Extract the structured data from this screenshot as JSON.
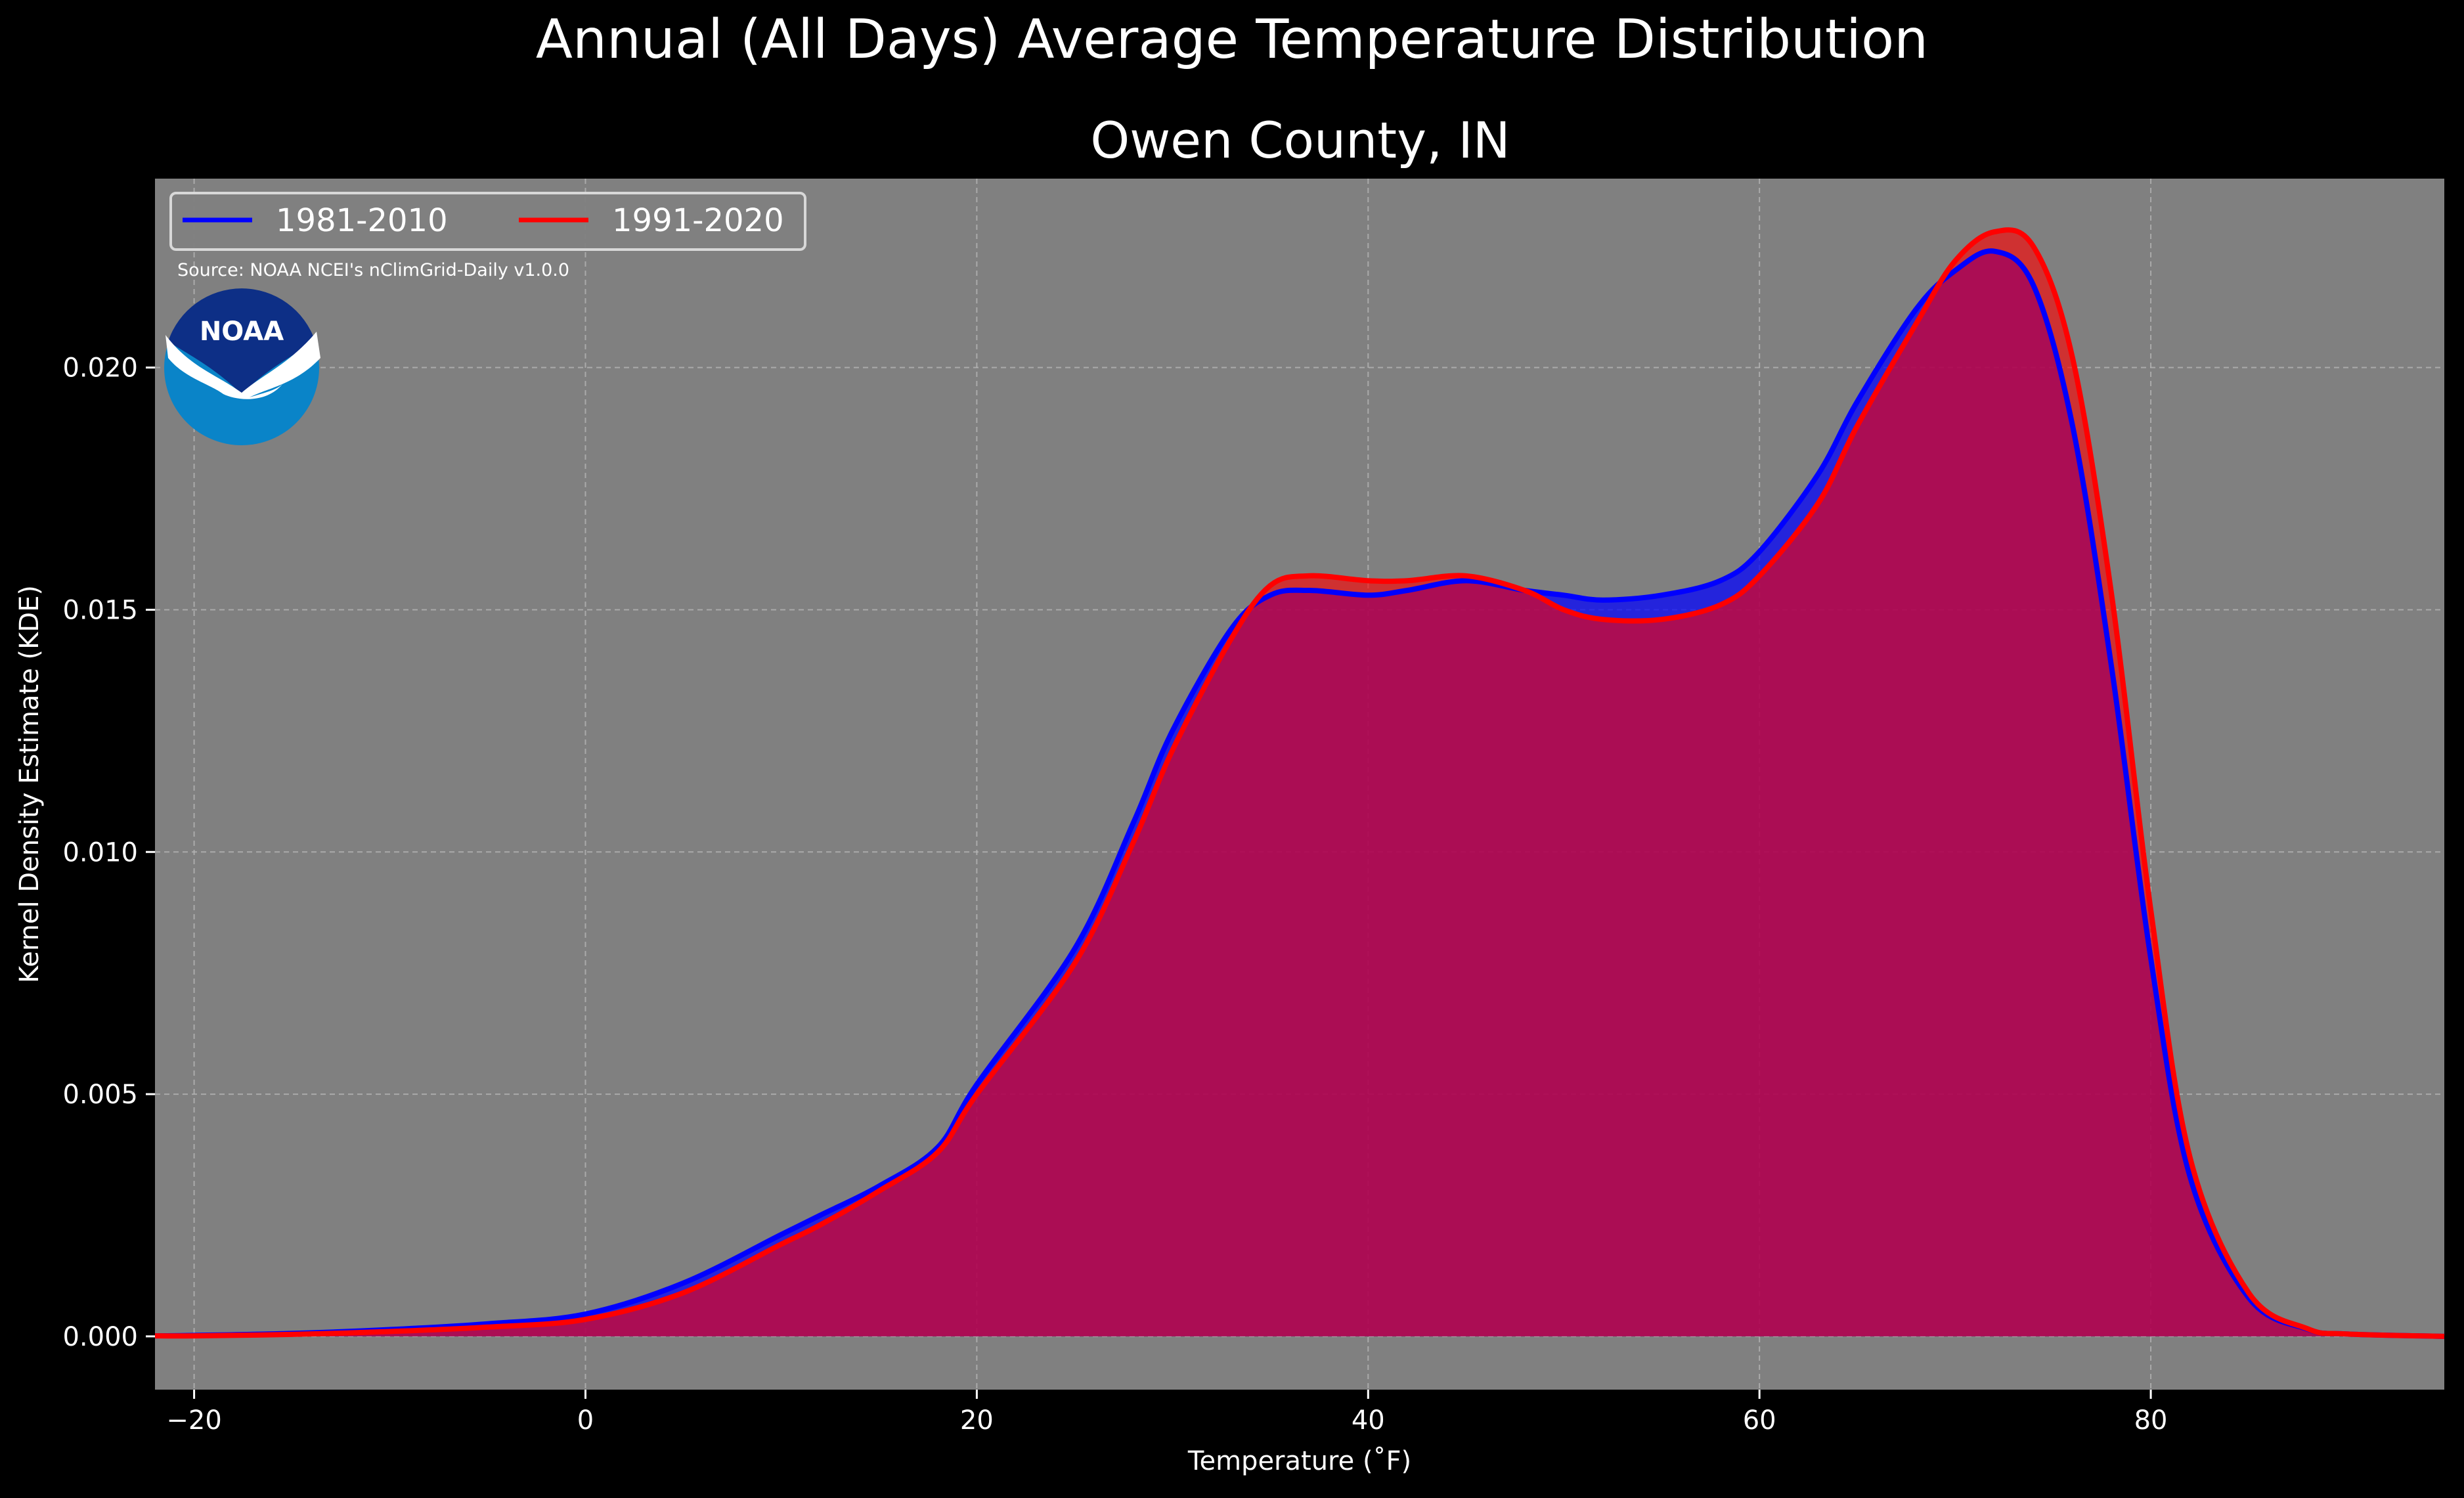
{
  "chart_data": {
    "type": "area",
    "suptitle": "Annual (All Days) Average Temperature Distribution",
    "title": "Owen County, IN",
    "xlabel": "Temperature (˚F)",
    "ylabel": "Kernel Density Estimate (KDE)",
    "xlim": [
      -22,
      95
    ],
    "ylim": [
      -0.0011,
      0.0239
    ],
    "x_ticks": [
      -20,
      0,
      20,
      40,
      60,
      80
    ],
    "x_tick_labels": [
      "−20",
      "0",
      "20",
      "40",
      "60",
      "80"
    ],
    "y_ticks": [
      0.0,
      0.005,
      0.01,
      0.015,
      0.02
    ],
    "y_tick_labels": [
      "0.000",
      "0.005",
      "0.010",
      "0.015",
      "0.020"
    ],
    "grid": true,
    "legend_position": "top-left",
    "source_note": "Source: NOAA NCEI's nClimGrid-Daily v1.0.0",
    "logo_text": "NOAA",
    "colors": {
      "figure_background": "#000000",
      "axes_background": "#808080",
      "grid": "#b8b8b8",
      "series_1981_2010": "#0000ff",
      "series_1991_2020": "#ff0000",
      "overlap_fill": "#9c1d5a",
      "logo_outer": "#0a84c8",
      "logo_inner": "#0d2f86"
    },
    "series": [
      {
        "name": "1981-2010",
        "color": "#0000ff",
        "x": [
          -22,
          -20,
          -15,
          -10,
          -5,
          0,
          5,
          10,
          12,
          15,
          18,
          20,
          25,
          28,
          30,
          33,
          35,
          37,
          40,
          42,
          45,
          48,
          50,
          52,
          55,
          58,
          60,
          63,
          65,
          68,
          70,
          72,
          74,
          76,
          78,
          80,
          82,
          85,
          88,
          90,
          95
        ],
        "y": [
          1e-05,
          2e-05,
          6e-05,
          0.00014,
          0.00026,
          0.00046,
          0.0011,
          0.0021,
          0.0025,
          0.0031,
          0.0039,
          0.0052,
          0.008,
          0.0106,
          0.0125,
          0.0146,
          0.0153,
          0.0154,
          0.0153,
          0.0154,
          0.0156,
          0.0154,
          0.0153,
          0.0152,
          0.0153,
          0.0156,
          0.0162,
          0.0178,
          0.0193,
          0.0212,
          0.022,
          0.0224,
          0.0217,
          0.0188,
          0.0138,
          0.0078,
          0.0033,
          0.0008,
          0.00015,
          5e-05,
          0.0
        ]
      },
      {
        "name": "1991-2020",
        "color": "#ff0000",
        "x": [
          -22,
          -20,
          -15,
          -10,
          -5,
          0,
          5,
          10,
          12,
          15,
          18,
          20,
          25,
          28,
          30,
          33,
          35,
          37,
          40,
          42,
          45,
          48,
          50,
          52,
          55,
          58,
          60,
          63,
          65,
          68,
          70,
          72,
          74,
          76,
          78,
          80,
          82,
          85,
          88,
          90,
          95
        ],
        "y": [
          1e-05,
          1e-05,
          4e-05,
          0.0001,
          0.00019,
          0.00035,
          0.0009,
          0.0019,
          0.0023,
          0.003,
          0.0038,
          0.005,
          0.0077,
          0.0102,
          0.0121,
          0.0144,
          0.0155,
          0.0157,
          0.0156,
          0.0156,
          0.0157,
          0.0154,
          0.015,
          0.0148,
          0.0148,
          0.0151,
          0.0157,
          0.0172,
          0.0188,
          0.0209,
          0.0222,
          0.0228,
          0.0225,
          0.0202,
          0.0153,
          0.0088,
          0.0037,
          0.0009,
          0.00016,
          5e-05,
          0.0
        ]
      }
    ]
  }
}
